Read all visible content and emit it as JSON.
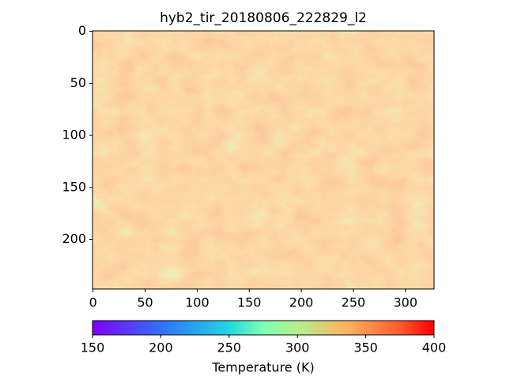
{
  "chart_data": {
    "type": "image",
    "title": "hyb2_tir_20180806_222829_l2",
    "xlim": [
      -0.5,
      327.5
    ],
    "xticks": [
      0,
      50,
      100,
      150,
      200,
      250,
      300
    ],
    "ylim": [
      247.5,
      -0.5
    ],
    "yticks": [
      0,
      50,
      100,
      150,
      200
    ],
    "colormap": "rainbow",
    "colorbar": {
      "label": "Temperature (K)",
      "clim": [
        150,
        400
      ],
      "ticks": [
        150,
        200,
        250,
        300,
        350,
        400
      ]
    }
  }
}
